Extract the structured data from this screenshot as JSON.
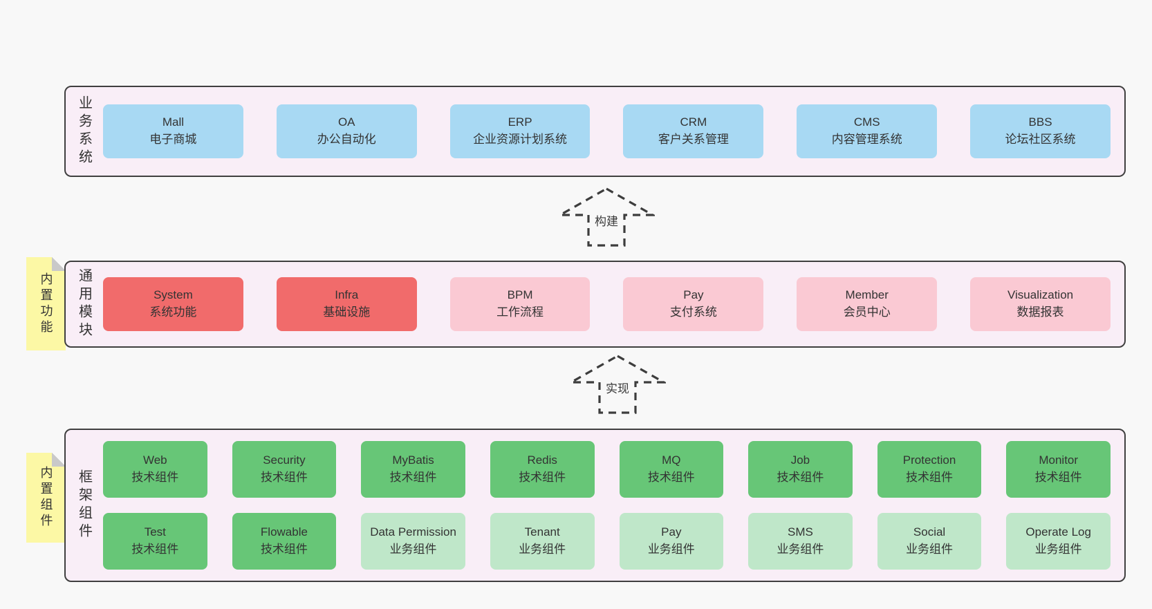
{
  "bands": [
    {
      "id": "business-systems",
      "label": "业务系统",
      "note": null,
      "rows": [
        [
          {
            "title": "Mall",
            "subtitle": "电子商城",
            "color": "blue"
          },
          {
            "title": "OA",
            "subtitle": "办公自动化",
            "color": "blue"
          },
          {
            "title": "ERP",
            "subtitle": "企业资源计划系统",
            "color": "blue"
          },
          {
            "title": "CRM",
            "subtitle": "客户关系管理",
            "color": "blue"
          },
          {
            "title": "CMS",
            "subtitle": "内容管理系统",
            "color": "blue"
          },
          {
            "title": "BBS",
            "subtitle": "论坛社区系统",
            "color": "blue"
          }
        ]
      ]
    },
    {
      "id": "common-modules",
      "label": "通用模块",
      "note": "内置功能",
      "rows": [
        [
          {
            "title": "System",
            "subtitle": "系统功能",
            "color": "red"
          },
          {
            "title": "Infra",
            "subtitle": "基础设施",
            "color": "red"
          },
          {
            "title": "BPM",
            "subtitle": "工作流程",
            "color": "pink"
          },
          {
            "title": "Pay",
            "subtitle": "支付系统",
            "color": "pink"
          },
          {
            "title": "Member",
            "subtitle": "会员中心",
            "color": "pink"
          },
          {
            "title": "Visualization",
            "subtitle": "数据报表",
            "color": "pink"
          }
        ]
      ]
    },
    {
      "id": "framework-components",
      "label": "框架组件",
      "note": "内置组件",
      "rows": [
        [
          {
            "title": "Web",
            "subtitle": "技术组件",
            "color": "green"
          },
          {
            "title": "Security",
            "subtitle": "技术组件",
            "color": "green"
          },
          {
            "title": "MyBatis",
            "subtitle": "技术组件",
            "color": "green"
          },
          {
            "title": "Redis",
            "subtitle": "技术组件",
            "color": "green"
          },
          {
            "title": "MQ",
            "subtitle": "技术组件",
            "color": "green"
          },
          {
            "title": "Job",
            "subtitle": "技术组件",
            "color": "green"
          },
          {
            "title": "Protection",
            "subtitle": "技术组件",
            "color": "green"
          },
          {
            "title": "Monitor",
            "subtitle": "技术组件",
            "color": "green"
          }
        ],
        [
          {
            "title": "Test",
            "subtitle": "技术组件",
            "color": "green"
          },
          {
            "title": "Flowable",
            "subtitle": "技术组件",
            "color": "green"
          },
          {
            "title": "Data Permission",
            "subtitle": "业务组件",
            "color": "green-light"
          },
          {
            "title": "Tenant",
            "subtitle": "业务组件",
            "color": "green-light"
          },
          {
            "title": "Pay",
            "subtitle": "业务组件",
            "color": "green-light"
          },
          {
            "title": "SMS",
            "subtitle": "业务组件",
            "color": "green-light"
          },
          {
            "title": "Social",
            "subtitle": "业务组件",
            "color": "green-light"
          },
          {
            "title": "Operate Log",
            "subtitle": "业务组件",
            "color": "green-light"
          }
        ]
      ]
    }
  ],
  "arrows": [
    {
      "label": "构建"
    },
    {
      "label": "实现"
    }
  ],
  "colors": {
    "page-bg": "#f8f8f8",
    "band-bg": "#f9eef7",
    "band-border": "#3f3f3f",
    "box-blue": "#a8d9f3",
    "box-red": "#f16b6b",
    "box-pink": "#fac9d3",
    "box-green": "#67c677",
    "box-green-light": "#bfe7c9",
    "note-yellow": "#fcf8a5",
    "note-fold": "#c9c9c9",
    "text": "#333333"
  }
}
